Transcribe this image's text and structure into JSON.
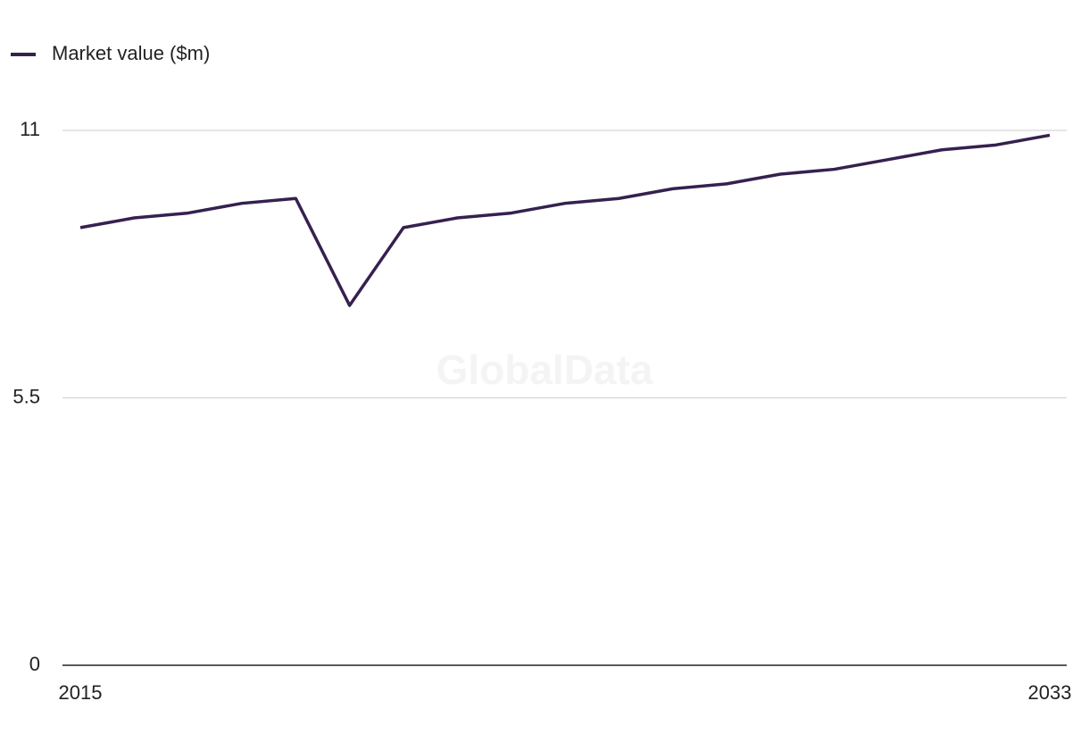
{
  "chart_data": {
    "type": "line",
    "watermark": "GlobalData",
    "x": [
      2015,
      2016,
      2017,
      2018,
      2019,
      2020,
      2021,
      2022,
      2023,
      2024,
      2025,
      2026,
      2027,
      2028,
      2029,
      2030,
      2031,
      2032,
      2033
    ],
    "series": [
      {
        "name": "Market value ($m)",
        "color": "#35214f",
        "values": [
          9.0,
          9.2,
          9.3,
          9.5,
          9.6,
          7.4,
          9.0,
          9.2,
          9.3,
          9.5,
          9.6,
          9.8,
          9.9,
          10.1,
          10.2,
          10.4,
          10.6,
          10.7,
          10.9
        ]
      }
    ],
    "xlim": [
      2015,
      2033
    ],
    "xticks": [
      2015,
      2033
    ],
    "ylim": [
      0,
      11
    ],
    "yticks": [
      0,
      5.5,
      11
    ],
    "grid": true,
    "legend": "top-left"
  }
}
